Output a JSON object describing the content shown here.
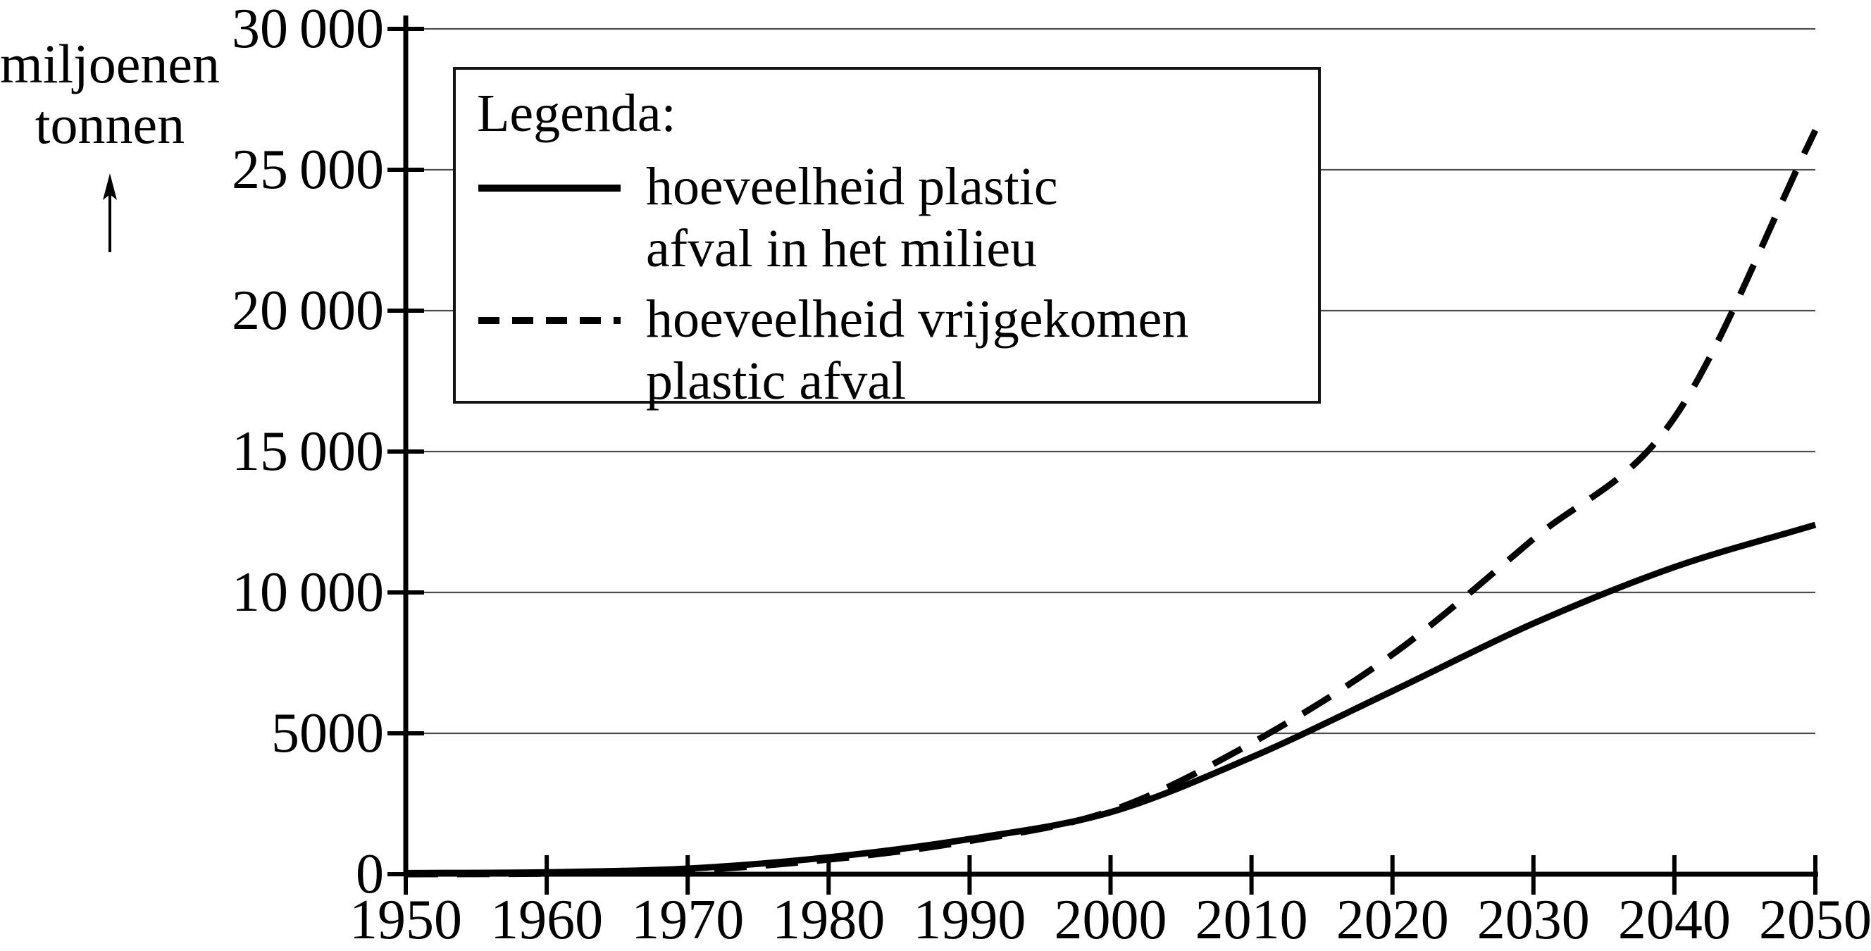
{
  "colors": {
    "line": "#000000",
    "grid": "#4d4d4d",
    "background": "#ffffff",
    "legend_border": "#141414"
  },
  "y_axis": {
    "title_line1": "miljoenen",
    "title_line2": "tonnen",
    "arrow_icon": "up-arrow",
    "ticks": [
      {
        "value": 0,
        "label": "0"
      },
      {
        "value": 5000,
        "label": "5000"
      },
      {
        "value": 10000,
        "label": "10 000"
      },
      {
        "value": 15000,
        "label": "15 000"
      },
      {
        "value": 20000,
        "label": "20 000"
      },
      {
        "value": 25000,
        "label": "25 000"
      },
      {
        "value": 30000,
        "label": "30 000"
      }
    ]
  },
  "x_axis": {
    "ticks": [
      {
        "value": 1950,
        "label": "1950"
      },
      {
        "value": 1960,
        "label": "1960"
      },
      {
        "value": 1970,
        "label": "1970"
      },
      {
        "value": 1980,
        "label": "1980"
      },
      {
        "value": 1990,
        "label": "1990"
      },
      {
        "value": 2000,
        "label": "2000"
      },
      {
        "value": 2010,
        "label": "2010"
      },
      {
        "value": 2020,
        "label": "2020"
      },
      {
        "value": 2030,
        "label": "2030"
      },
      {
        "value": 2040,
        "label": "2040"
      },
      {
        "value": 2050,
        "label": "2050"
      }
    ]
  },
  "legend": {
    "title": "Legenda:",
    "items": [
      {
        "style": "solid",
        "label_line1": "hoeveelheid plastic",
        "label_line2": "afval in het milieu"
      },
      {
        "style": "dashed",
        "label_line1": "hoeveelheid vrijgekomen",
        "label_line2": "plastic afval"
      }
    ]
  },
  "chart_data": {
    "type": "line",
    "title": "",
    "xlabel": "",
    "ylabel": "miljoenen tonnen",
    "x": [
      1950,
      1960,
      1970,
      1980,
      1990,
      2000,
      2010,
      2020,
      2030,
      2040,
      2050
    ],
    "series": [
      {
        "name": "hoeveelheid plastic afval in het milieu",
        "style": "solid",
        "values": [
          40,
          70,
          200,
          600,
          1250,
          2200,
          4150,
          6500,
          8900,
          10900,
          12400
        ]
      },
      {
        "name": "hoeveelheid vrijgekomen plastic afval",
        "style": "dashed",
        "values": [
          0,
          20,
          130,
          520,
          1180,
          2250,
          4650,
          7800,
          11900,
          16200,
          26400
        ]
      }
    ],
    "xlim": [
      1950,
      2050
    ],
    "ylim": [
      0,
      30000
    ],
    "grid": "horizontal",
    "legend_position": "top-left-inside"
  }
}
